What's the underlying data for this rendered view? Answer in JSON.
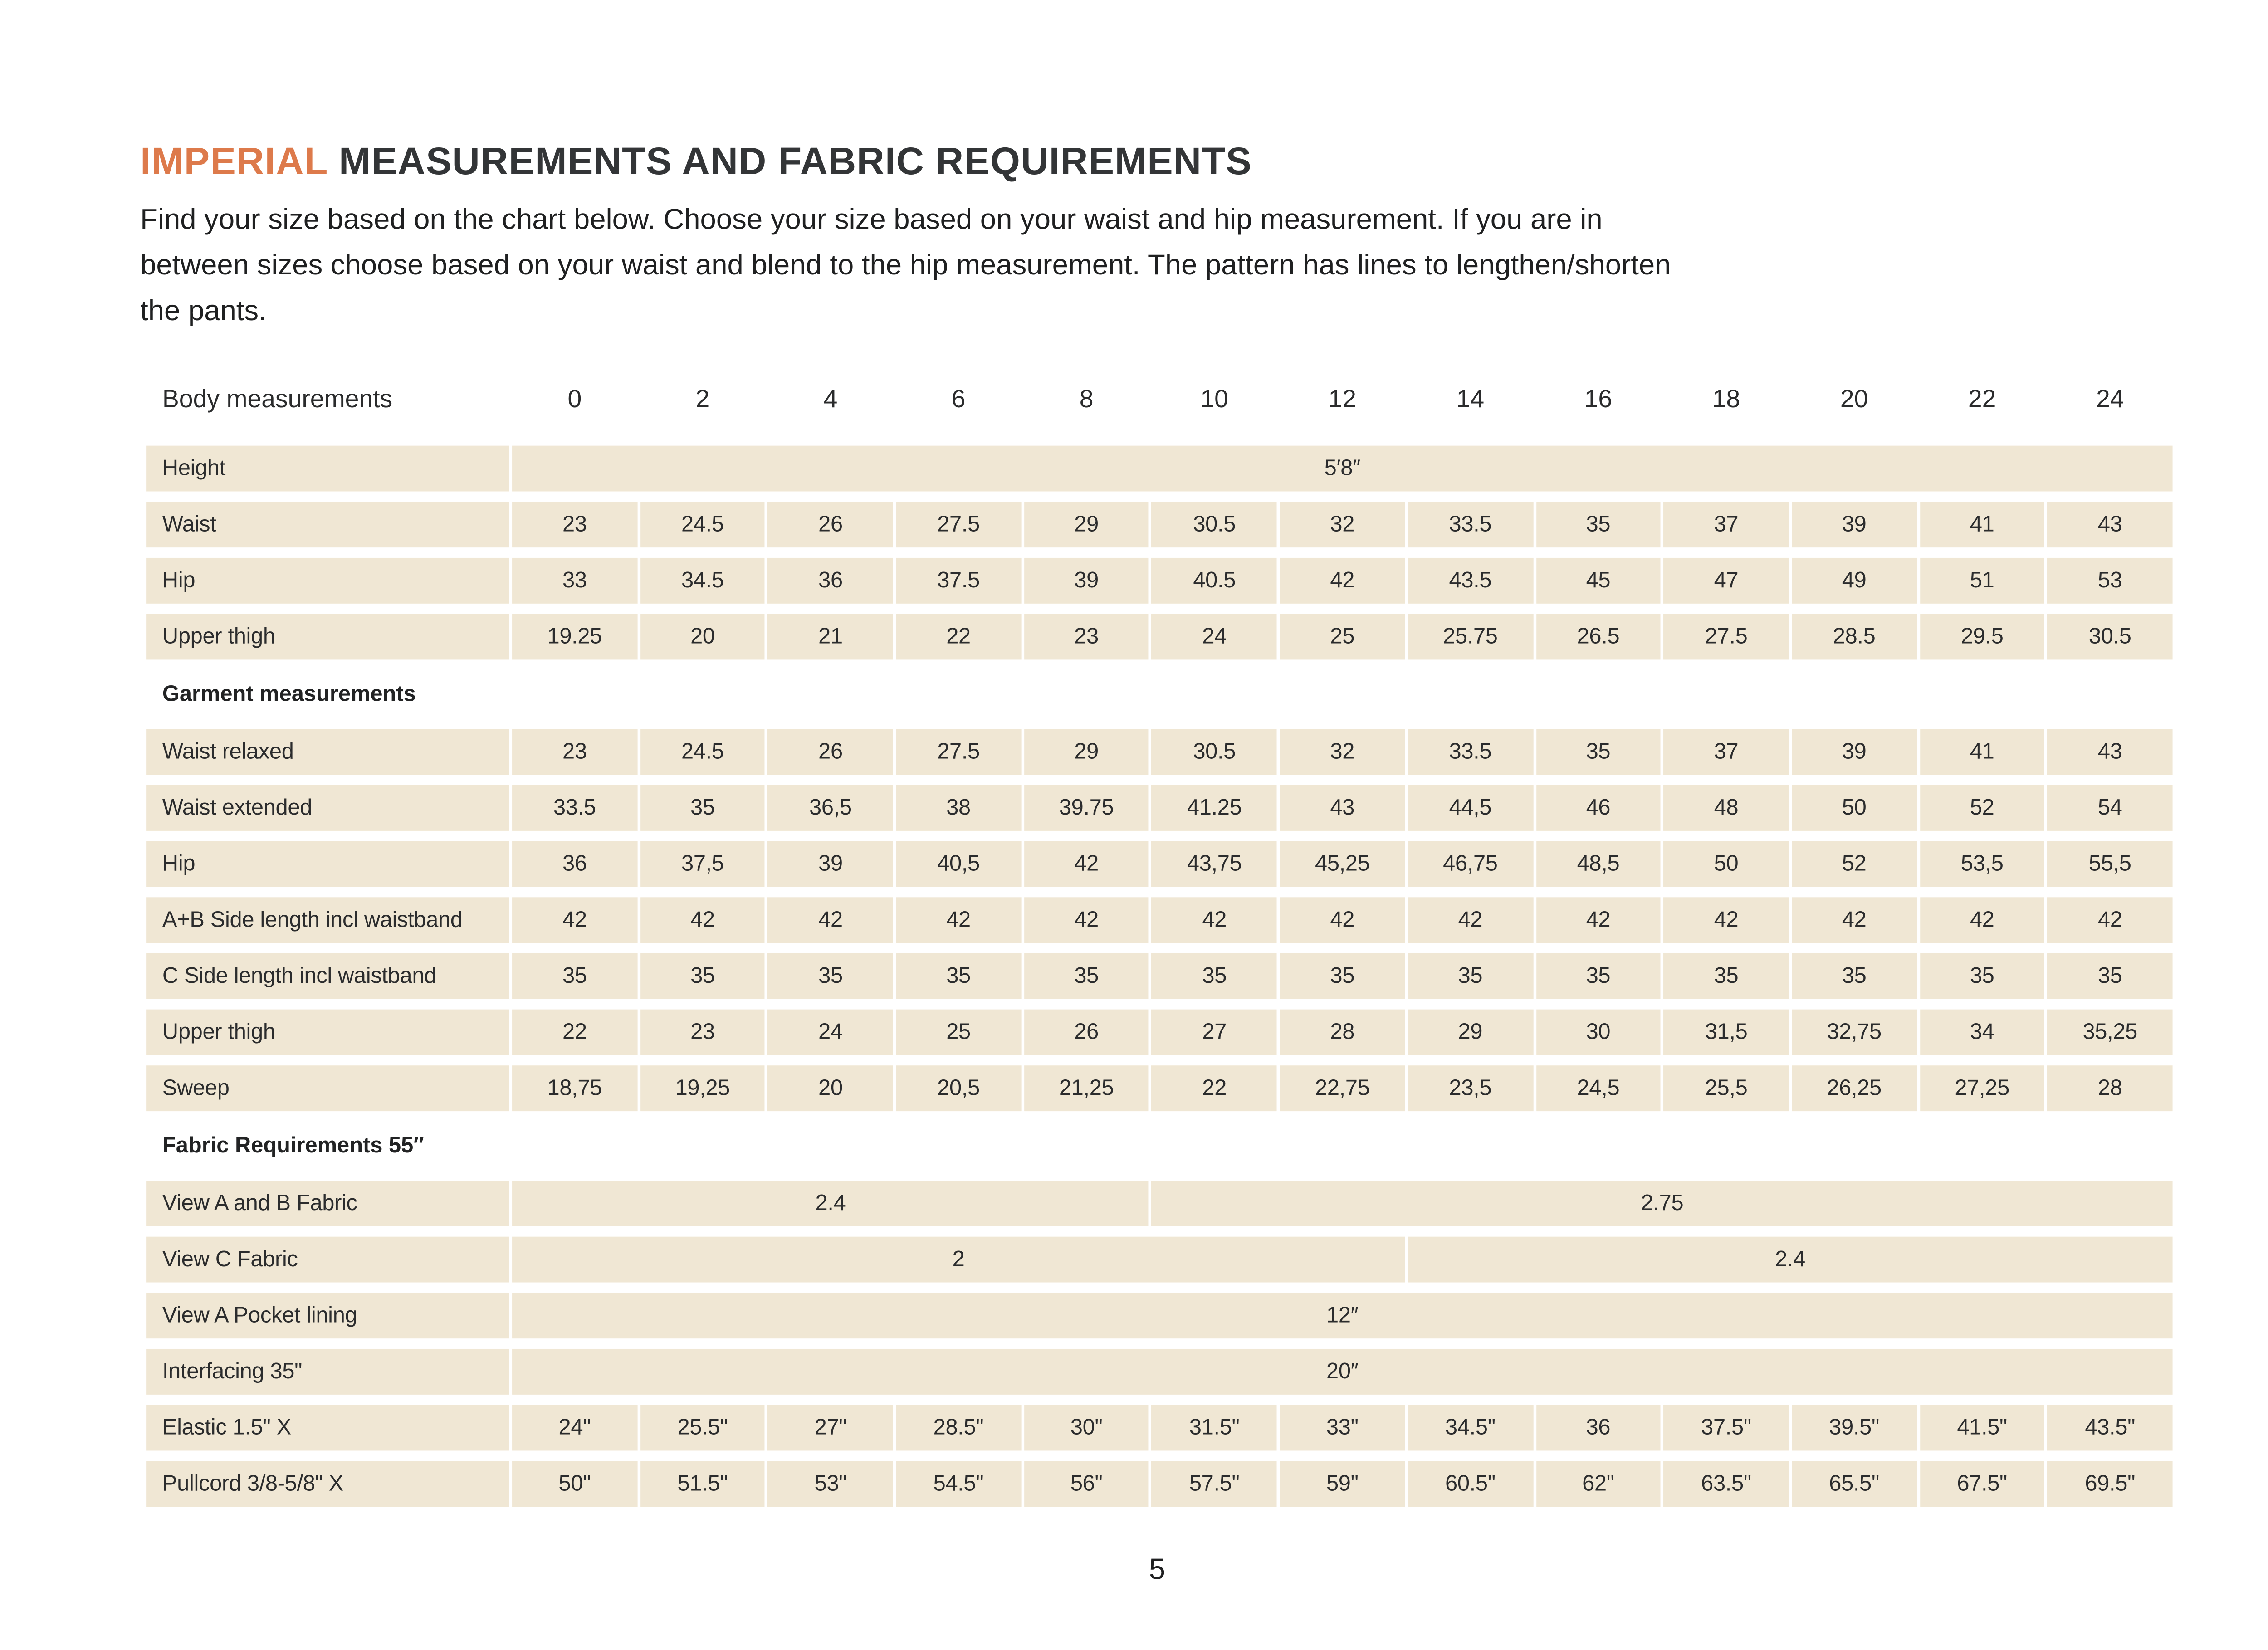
{
  "page": {
    "title": {
      "accent": "IMPERIAL",
      "rest": "MEASUREMENTS AND FABRIC REQUIREMENTS"
    },
    "intro_lines": [
      "Find your size based on the chart below. Choose your size based on your waist and hip measurement. If you are in",
      "between sizes choose based on your waist and blend to the hip measurement. The pattern has lines to lengthen/shorten",
      "the pants."
    ],
    "page_number": "5"
  },
  "colors": {
    "accent_orange": "#DD7A4B",
    "cell_beige": "#F0E7D4",
    "text_dark": "#2b2c2d"
  },
  "table": {
    "header_label": "Body measurements",
    "sizes": [
      "0",
      "2",
      "4",
      "6",
      "8",
      "10",
      "12",
      "14",
      "16",
      "18",
      "20",
      "22",
      "24"
    ],
    "rows": [
      {
        "label": "Height",
        "cells": [
          {
            "v": "5′8″",
            "span": 13
          }
        ]
      },
      {
        "label": "Waist",
        "values": [
          "23",
          "24.5",
          "26",
          "27.5",
          "29",
          "30.5",
          "32",
          "33.5",
          "35",
          "37",
          "39",
          "41",
          "43"
        ]
      },
      {
        "label": "Hip",
        "values": [
          "33",
          "34.5",
          "36",
          "37.5",
          "39",
          "40.5",
          "42",
          "43.5",
          "45",
          "47",
          "49",
          "51",
          "53"
        ]
      },
      {
        "label": "Upper thigh",
        "values": [
          "19.25",
          "20",
          "21",
          "22",
          "23",
          "24",
          "25",
          "25.75",
          "26.5",
          "27.5",
          "28.5",
          "29.5",
          "30.5"
        ]
      },
      {
        "section": "Garment measurements"
      },
      {
        "label": "Waist relaxed",
        "values": [
          "23",
          "24.5",
          "26",
          "27.5",
          "29",
          "30.5",
          "32",
          "33.5",
          "35",
          "37",
          "39",
          "41",
          "43"
        ]
      },
      {
        "label": "Waist extended",
        "values": [
          "33.5",
          "35",
          "36,5",
          "38",
          "39.75",
          "41.25",
          "43",
          "44,5",
          "46",
          "48",
          "50",
          "52",
          "54"
        ]
      },
      {
        "label": "Hip",
        "values": [
          "36",
          "37,5",
          "39",
          "40,5",
          "42",
          "43,75",
          "45,25",
          "46,75",
          "48,5",
          "50",
          "52",
          "53,5",
          "55,5"
        ]
      },
      {
        "label": "A+B Side length incl waistband",
        "values": [
          "42",
          "42",
          "42",
          "42",
          "42",
          "42",
          "42",
          "42",
          "42",
          "42",
          "42",
          "42",
          "42"
        ]
      },
      {
        "label": "C Side length incl waistband",
        "values": [
          "35",
          "35",
          "35",
          "35",
          "35",
          "35",
          "35",
          "35",
          "35",
          "35",
          "35",
          "35",
          "35"
        ]
      },
      {
        "label": "Upper thigh",
        "values": [
          "22",
          "23",
          "24",
          "25",
          "26",
          "27",
          "28",
          "29",
          "30",
          "31,5",
          "32,75",
          "34",
          "35,25"
        ]
      },
      {
        "label": "Sweep",
        "values": [
          "18,75",
          "19,25",
          "20",
          "20,5",
          "21,25",
          "22",
          "22,75",
          "23,5",
          "24,5",
          "25,5",
          "26,25",
          "27,25",
          "28"
        ]
      },
      {
        "section": "Fabric Requirements 55″"
      },
      {
        "label": "View A  and B Fabric",
        "cells": [
          {
            "v": "2.4",
            "span": 5
          },
          {
            "v": "2.75",
            "span": 8
          }
        ]
      },
      {
        "label": "View C Fabric",
        "cells": [
          {
            "v": "2",
            "span": 7
          },
          {
            "v": "2.4",
            "span": 6
          }
        ]
      },
      {
        "label": "View A Pocket lining",
        "cells": [
          {
            "v": "12″",
            "span": 13
          }
        ]
      },
      {
        "label": "Interfacing 35\"",
        "cells": [
          {
            "v": "20″",
            "span": 13
          }
        ]
      },
      {
        "label": "Elastic  1.5\" X",
        "values": [
          "24\"",
          "25.5\"",
          "27\"",
          "28.5\"",
          "30\"",
          "31.5\"",
          "33\"",
          "34.5\"",
          "36",
          "37.5\"",
          "39.5\"",
          "41.5\"",
          "43.5\""
        ]
      },
      {
        "label": "Pullcord 3/8-5/8\" X",
        "values": [
          "50\"",
          "51.5\"",
          "53\"",
          "54.5\"",
          "56\"",
          "57.5\"",
          "59\"",
          "60.5\"",
          "62\"",
          "63.5\"",
          "65.5\"",
          "67.5\"",
          "69.5\""
        ]
      }
    ]
  }
}
